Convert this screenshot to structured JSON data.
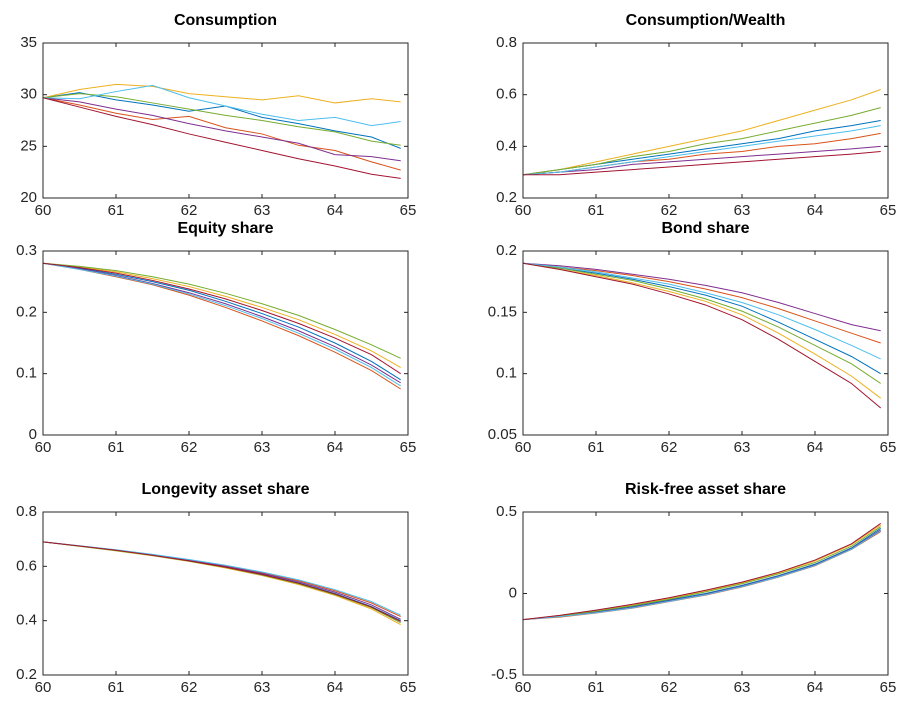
{
  "chart_data": [
    {
      "type": "line",
      "title": "Consumption",
      "x": [
        60,
        60.5,
        61,
        61.5,
        62,
        62.5,
        63,
        63.5,
        64,
        64.5,
        64.9
      ],
      "xlim": [
        60,
        65
      ],
      "xticks": [
        60,
        61,
        62,
        63,
        64,
        65
      ],
      "ylim": [
        20,
        35
      ],
      "yticks": [
        20,
        25,
        30,
        35
      ],
      "series": [
        {
          "color": "#0072BD",
          "values": [
            29.7,
            30.2,
            29.5,
            29.0,
            28.4,
            28.9,
            27.8,
            27.2,
            26.5,
            25.9,
            24.8
          ]
        },
        {
          "color": "#D95319",
          "values": [
            29.7,
            29.0,
            28.2,
            27.6,
            27.9,
            26.8,
            26.2,
            25.1,
            24.6,
            23.5,
            22.7
          ]
        },
        {
          "color": "#EDB120",
          "values": [
            29.7,
            30.5,
            31.0,
            30.8,
            30.1,
            29.8,
            29.5,
            29.9,
            29.2,
            29.6,
            29.3
          ]
        },
        {
          "color": "#7E2F8E",
          "values": [
            29.7,
            29.3,
            28.6,
            28.0,
            27.2,
            26.5,
            25.9,
            25.3,
            24.2,
            24.0,
            23.6
          ]
        },
        {
          "color": "#77AC30",
          "values": [
            29.7,
            30.1,
            29.8,
            29.2,
            28.6,
            28.0,
            27.5,
            26.9,
            26.4,
            25.5,
            25.1
          ]
        },
        {
          "color": "#4DBEEE",
          "values": [
            29.7,
            29.6,
            30.3,
            30.9,
            29.7,
            28.9,
            28.1,
            27.5,
            27.8,
            27.0,
            27.4
          ]
        },
        {
          "color": "#A2142F",
          "values": [
            29.7,
            28.8,
            27.9,
            27.1,
            26.2,
            25.4,
            24.6,
            23.8,
            23.1,
            22.3,
            21.9
          ]
        }
      ]
    },
    {
      "type": "line",
      "title": "Consumption/Wealth",
      "x": [
        60,
        60.5,
        61,
        61.5,
        62,
        62.5,
        63,
        63.5,
        64,
        64.5,
        64.9
      ],
      "xlim": [
        60,
        65
      ],
      "xticks": [
        60,
        61,
        62,
        63,
        64,
        65
      ],
      "ylim": [
        0.2,
        0.8
      ],
      "yticks": [
        0.2,
        0.4,
        0.6,
        0.8
      ],
      "series": [
        {
          "color": "#0072BD",
          "values": [
            0.29,
            0.31,
            0.33,
            0.35,
            0.37,
            0.39,
            0.41,
            0.43,
            0.46,
            0.48,
            0.5
          ]
        },
        {
          "color": "#D95319",
          "values": [
            0.29,
            0.3,
            0.32,
            0.34,
            0.35,
            0.37,
            0.38,
            0.4,
            0.41,
            0.43,
            0.45
          ]
        },
        {
          "color": "#EDB120",
          "values": [
            0.29,
            0.31,
            0.34,
            0.37,
            0.4,
            0.43,
            0.46,
            0.5,
            0.54,
            0.58,
            0.62
          ]
        },
        {
          "color": "#7E2F8E",
          "values": [
            0.29,
            0.3,
            0.31,
            0.33,
            0.34,
            0.35,
            0.36,
            0.37,
            0.38,
            0.39,
            0.4
          ]
        },
        {
          "color": "#77AC30",
          "values": [
            0.29,
            0.31,
            0.33,
            0.36,
            0.38,
            0.41,
            0.43,
            0.46,
            0.49,
            0.52,
            0.55
          ]
        },
        {
          "color": "#4DBEEE",
          "values": [
            0.29,
            0.3,
            0.32,
            0.34,
            0.36,
            0.38,
            0.4,
            0.42,
            0.44,
            0.46,
            0.48
          ]
        },
        {
          "color": "#A2142F",
          "values": [
            0.29,
            0.29,
            0.3,
            0.31,
            0.32,
            0.33,
            0.34,
            0.35,
            0.36,
            0.37,
            0.38
          ]
        }
      ]
    },
    {
      "type": "line",
      "title": "Equity share",
      "x": [
        60,
        60.5,
        61,
        61.5,
        62,
        62.5,
        63,
        63.5,
        64,
        64.5,
        64.9
      ],
      "xlim": [
        60,
        65
      ],
      "xticks": [
        60,
        61,
        62,
        63,
        64,
        65
      ],
      "ylim": [
        0,
        0.3
      ],
      "yticks": [
        0,
        0.1,
        0.2,
        0.3
      ],
      "series": [
        {
          "color": "#0072BD",
          "values": [
            0.28,
            0.272,
            0.262,
            0.25,
            0.236,
            0.218,
            0.198,
            0.176,
            0.15,
            0.12,
            0.09
          ]
        },
        {
          "color": "#D95319",
          "values": [
            0.28,
            0.27,
            0.258,
            0.245,
            0.228,
            0.208,
            0.186,
            0.162,
            0.135,
            0.105,
            0.075
          ]
        },
        {
          "color": "#EDB120",
          "values": [
            0.28,
            0.274,
            0.266,
            0.255,
            0.242,
            0.226,
            0.208,
            0.188,
            0.164,
            0.137,
            0.11
          ]
        },
        {
          "color": "#7E2F8E",
          "values": [
            0.28,
            0.271,
            0.26,
            0.247,
            0.232,
            0.214,
            0.193,
            0.17,
            0.144,
            0.114,
            0.085
          ]
        },
        {
          "color": "#77AC30",
          "values": [
            0.28,
            0.275,
            0.268,
            0.258,
            0.246,
            0.231,
            0.214,
            0.195,
            0.172,
            0.147,
            0.125
          ]
        },
        {
          "color": "#4DBEEE",
          "values": [
            0.28,
            0.27,
            0.259,
            0.246,
            0.23,
            0.211,
            0.19,
            0.166,
            0.14,
            0.11,
            0.08
          ]
        },
        {
          "color": "#A2142F",
          "values": [
            0.28,
            0.273,
            0.264,
            0.252,
            0.238,
            0.222,
            0.203,
            0.182,
            0.158,
            0.131,
            0.1
          ]
        }
      ]
    },
    {
      "type": "line",
      "title": "Bond share",
      "x": [
        60,
        60.5,
        61,
        61.5,
        62,
        62.5,
        63,
        63.5,
        64,
        64.5,
        64.9
      ],
      "xlim": [
        60,
        65
      ],
      "xticks": [
        60,
        61,
        62,
        63,
        64,
        65
      ],
      "ylim": [
        0.05,
        0.2
      ],
      "yticks": [
        0.05,
        0.1,
        0.15,
        0.2
      ],
      "series": [
        {
          "color": "#0072BD",
          "values": [
            0.19,
            0.186,
            0.182,
            0.177,
            0.171,
            0.164,
            0.155,
            0.142,
            0.128,
            0.114,
            0.1
          ]
        },
        {
          "color": "#D95319",
          "values": [
            0.19,
            0.187,
            0.184,
            0.18,
            0.175,
            0.169,
            0.162,
            0.153,
            0.143,
            0.133,
            0.125
          ]
        },
        {
          "color": "#EDB120",
          "values": [
            0.19,
            0.185,
            0.18,
            0.174,
            0.167,
            0.159,
            0.148,
            0.133,
            0.116,
            0.098,
            0.08
          ]
        },
        {
          "color": "#7E2F8E",
          "values": [
            0.19,
            0.188,
            0.185,
            0.181,
            0.177,
            0.172,
            0.166,
            0.158,
            0.149,
            0.14,
            0.135
          ]
        },
        {
          "color": "#77AC30",
          "values": [
            0.19,
            0.186,
            0.181,
            0.176,
            0.169,
            0.161,
            0.151,
            0.138,
            0.123,
            0.108,
            0.092
          ]
        },
        {
          "color": "#4DBEEE",
          "values": [
            0.19,
            0.187,
            0.183,
            0.178,
            0.173,
            0.166,
            0.158,
            0.148,
            0.136,
            0.123,
            0.112
          ]
        },
        {
          "color": "#A2142F",
          "values": [
            0.19,
            0.185,
            0.179,
            0.173,
            0.165,
            0.156,
            0.144,
            0.128,
            0.11,
            0.092,
            0.072
          ]
        }
      ]
    },
    {
      "type": "line",
      "title": "Longevity asset share",
      "x": [
        60,
        60.5,
        61,
        61.5,
        62,
        62.5,
        63,
        63.5,
        64,
        64.5,
        64.9
      ],
      "xlim": [
        60,
        65
      ],
      "xticks": [
        60,
        61,
        62,
        63,
        64,
        65
      ],
      "ylim": [
        0.2,
        0.8
      ],
      "yticks": [
        0.2,
        0.4,
        0.6,
        0.8
      ],
      "series": [
        {
          "color": "#0072BD",
          "values": [
            0.69,
            0.675,
            0.659,
            0.641,
            0.621,
            0.598,
            0.571,
            0.539,
            0.5,
            0.452,
            0.4
          ]
        },
        {
          "color": "#D95319",
          "values": [
            0.69,
            0.675,
            0.66,
            0.643,
            0.624,
            0.602,
            0.577,
            0.547,
            0.51,
            0.465,
            0.415
          ]
        },
        {
          "color": "#EDB120",
          "values": [
            0.69,
            0.674,
            0.657,
            0.639,
            0.618,
            0.594,
            0.566,
            0.533,
            0.493,
            0.443,
            0.385
          ]
        },
        {
          "color": "#7E2F8E",
          "values": [
            0.69,
            0.675,
            0.659,
            0.642,
            0.622,
            0.6,
            0.574,
            0.543,
            0.505,
            0.458,
            0.405
          ]
        },
        {
          "color": "#77AC30",
          "values": [
            0.69,
            0.674,
            0.658,
            0.64,
            0.619,
            0.596,
            0.568,
            0.536,
            0.496,
            0.448,
            0.392
          ]
        },
        {
          "color": "#4DBEEE",
          "values": [
            0.69,
            0.676,
            0.661,
            0.644,
            0.625,
            0.604,
            0.579,
            0.55,
            0.514,
            0.47,
            0.42
          ]
        },
        {
          "color": "#A2142F",
          "values": [
            0.69,
            0.675,
            0.659,
            0.641,
            0.62,
            0.597,
            0.57,
            0.538,
            0.498,
            0.45,
            0.397
          ]
        }
      ]
    },
    {
      "type": "line",
      "title": "Risk-free asset share",
      "x": [
        60,
        60.5,
        61,
        61.5,
        62,
        62.5,
        63,
        63.5,
        64,
        64.5,
        64.9
      ],
      "xlim": [
        60,
        65
      ],
      "xticks": [
        60,
        61,
        62,
        63,
        64,
        65
      ],
      "ylim": [
        -0.5,
        0.5
      ],
      "yticks": [
        -0.5,
        0,
        0.5
      ],
      "series": [
        {
          "color": "#0072BD",
          "values": [
            -0.16,
            -0.14,
            -0.11,
            -0.08,
            -0.04,
            0,
            0.05,
            0.11,
            0.18,
            0.28,
            0.4
          ]
        },
        {
          "color": "#D95319",
          "values": [
            -0.16,
            -0.145,
            -0.12,
            -0.09,
            -0.05,
            -0.01,
            0.04,
            0.1,
            0.17,
            0.27,
            0.38
          ]
        },
        {
          "color": "#EDB120",
          "values": [
            -0.16,
            -0.135,
            -0.105,
            -0.07,
            -0.03,
            0.015,
            0.065,
            0.125,
            0.2,
            0.3,
            0.42
          ]
        },
        {
          "color": "#7E2F8E",
          "values": [
            -0.16,
            -0.14,
            -0.115,
            -0.085,
            -0.045,
            -0.005,
            0.045,
            0.105,
            0.175,
            0.275,
            0.39
          ]
        },
        {
          "color": "#77AC30",
          "values": [
            -0.16,
            -0.138,
            -0.108,
            -0.075,
            -0.035,
            0.01,
            0.06,
            0.12,
            0.19,
            0.29,
            0.41
          ]
        },
        {
          "color": "#4DBEEE",
          "values": [
            -0.16,
            -0.142,
            -0.118,
            -0.088,
            -0.048,
            -0.008,
            0.042,
            0.102,
            0.172,
            0.272,
            0.385
          ]
        },
        {
          "color": "#A2142F",
          "values": [
            -0.16,
            -0.134,
            -0.102,
            -0.066,
            -0.026,
            0.02,
            0.07,
            0.13,
            0.205,
            0.305,
            0.43
          ]
        }
      ]
    }
  ]
}
